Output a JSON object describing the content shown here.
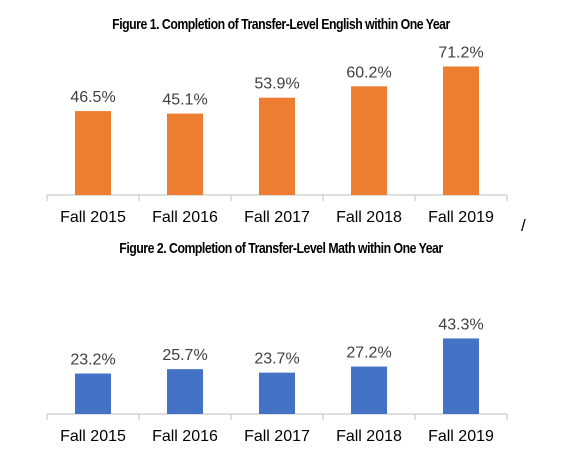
{
  "chart_data": [
    {
      "type": "bar",
      "title": "Figure 1. Completion of Transfer-Level English within One Year",
      "categories": [
        "Fall 2015",
        "Fall 2016",
        "Fall 2017",
        "Fall 2018",
        "Fall 2019"
      ],
      "values": [
        46.5,
        45.1,
        53.9,
        60.2,
        71.2
      ],
      "data_labels": [
        "46.5%",
        "45.1%",
        "53.9%",
        "60.2%",
        "71.2%"
      ],
      "color": "#ED7D31",
      "ylim": [
        0,
        100
      ],
      "grid": false,
      "legend": "none"
    },
    {
      "type": "bar",
      "title": "Figure 2. Completion of Transfer-Level Math within One Year",
      "categories": [
        "Fall 2015",
        "Fall 2016",
        "Fall 2017",
        "Fall 2018",
        "Fall 2019"
      ],
      "values": [
        23.2,
        25.7,
        23.7,
        27.2,
        43.3
      ],
      "data_labels": [
        "23.2%",
        "25.7%",
        "23.7%",
        "27.2%",
        "43.3%"
      ],
      "color": "#4472C4",
      "ylim": [
        0,
        100
      ],
      "grid": false,
      "legend": "none"
    }
  ],
  "stray_mark": "/"
}
